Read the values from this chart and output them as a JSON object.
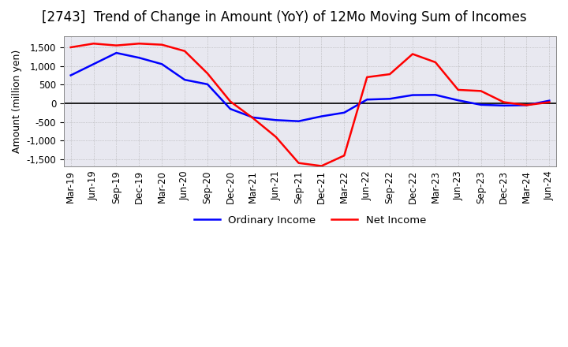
{
  "title": "[2743]  Trend of Change in Amount (YoY) of 12Mo Moving Sum of Incomes",
  "ylabel": "Amount (million yen)",
  "ylim": [
    -1700,
    1800
  ],
  "yticks": [
    -1500,
    -1000,
    -500,
    0,
    500,
    1000,
    1500
  ],
  "legend_labels": [
    "Ordinary Income",
    "Net Income"
  ],
  "line_colors": [
    "#0000ff",
    "#ff0000"
  ],
  "x_labels": [
    "Mar-19",
    "Jun-19",
    "Sep-19",
    "Dec-19",
    "Mar-20",
    "Jun-20",
    "Sep-20",
    "Dec-20",
    "Mar-21",
    "Jun-21",
    "Sep-21",
    "Dec-21",
    "Mar-22",
    "Jun-22",
    "Sep-22",
    "Dec-22",
    "Mar-23",
    "Jun-23",
    "Sep-23",
    "Dec-23",
    "Mar-24",
    "Jun-24"
  ],
  "ordinary_income": [
    750,
    1050,
    1350,
    1220,
    1050,
    630,
    510,
    -150,
    -380,
    -450,
    -480,
    -350,
    -250,
    100,
    120,
    220,
    225,
    80,
    -40,
    -60,
    -50,
    70
  ],
  "net_income": [
    1500,
    1600,
    1550,
    1600,
    1570,
    1400,
    800,
    50,
    -400,
    -900,
    -1600,
    -1680,
    -1400,
    700,
    780,
    1320,
    1100,
    360,
    330,
    30,
    -50,
    30
  ],
  "background_color": "#e8e8f0",
  "grid_color": "#aaaaaa",
  "title_fontsize": 12,
  "label_fontsize": 9,
  "tick_fontsize": 8.5
}
